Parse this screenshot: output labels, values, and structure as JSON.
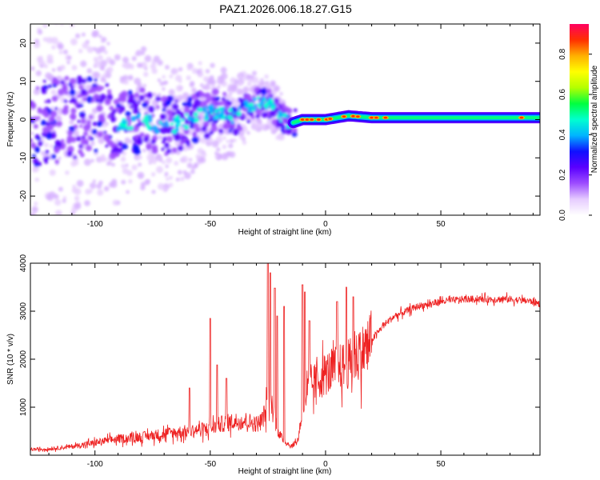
{
  "page": {
    "title": "PAZ1.2026.006.18.27.G15"
  },
  "chart_data": [
    {
      "type": "heatmap",
      "title": "PAZ1.2026.006.18.27.G15",
      "xlabel": "Height of straight line (km)",
      "ylabel": "Frequency (Hz)",
      "xlim": [
        -128,
        93
      ],
      "ylim": [
        -25,
        25
      ],
      "x_ticks": [
        -100,
        -50,
        0,
        50
      ],
      "y_ticks": [
        -20,
        -10,
        0,
        10,
        20
      ],
      "colorbar": {
        "label": "Normalized spectral amplitude",
        "range": [
          0,
          0.95
        ],
        "ticks": [
          0,
          0.2,
          0.4,
          0.6,
          0.8
        ],
        "tick_labels": [
          "0.0",
          "0.2",
          "0.4",
          "0.6",
          "0.8"
        ],
        "colors": [
          "#ffffff",
          "#e6ccff",
          "#9d4dff",
          "#5a00ff",
          "#1010ff",
          "#00b4ff",
          "#00ffd0",
          "#00ff40",
          "#b4ff00",
          "#ffff00",
          "#ffb000",
          "#ff3000",
          "#ff0060"
        ]
      },
      "ridge": {
        "x": [
          -115,
          -100,
          -90,
          -80,
          -70,
          -62,
          -55,
          -48,
          -40,
          -34,
          -28,
          -24,
          -20,
          -15,
          -10,
          -5,
          0,
          5,
          10,
          20,
          30,
          50,
          70,
          93
        ],
        "y": [
          0,
          1,
          -1,
          0,
          -2,
          -1,
          1,
          2,
          1,
          3,
          5,
          4,
          1,
          -1,
          0,
          0,
          0,
          0.5,
          1,
          0.5,
          0.5,
          0.5,
          0.5,
          0.5
        ]
      }
    },
    {
      "type": "line",
      "title": "",
      "xlabel": "Height of straight line (km)",
      "ylabel": "SNR (10 * v/v)",
      "xlim": [
        -128,
        93
      ],
      "ylim": [
        0,
        4000
      ],
      "x_ticks": [
        -100,
        -50,
        0,
        50
      ],
      "y_ticks": [
        1000,
        2000,
        3000,
        4000
      ],
      "series": [
        {
          "name": "SNR",
          "color": "#ee2222",
          "x": [
            -128,
            -120,
            -110,
            -100,
            -90,
            -80,
            -70,
            -60,
            -50,
            -45,
            -40,
            -35,
            -30,
            -28,
            -26,
            -24,
            -22,
            -20,
            -15,
            -12,
            -10,
            -8,
            -5,
            0,
            5,
            10,
            15,
            20,
            25,
            30,
            35,
            40,
            45,
            50,
            60,
            70,
            80,
            90,
            93
          ],
          "values": [
            120,
            130,
            180,
            260,
            340,
            380,
            450,
            500,
            560,
            650,
            700,
            720,
            650,
            700,
            900,
            1200,
            750,
            400,
            180,
            300,
            950,
            1300,
            1500,
            1700,
            1800,
            1900,
            2100,
            2400,
            2700,
            2900,
            3000,
            3100,
            3150,
            3200,
            3250,
            3250,
            3250,
            3200,
            3150
          ]
        }
      ],
      "spikes": [
        {
          "x": -59,
          "value": 1400
        },
        {
          "x": -50,
          "value": 2850
        },
        {
          "x": -47,
          "value": 1880
        },
        {
          "x": -43,
          "value": 1600
        },
        {
          "x": -25,
          "value": 4000
        },
        {
          "x": -24,
          "value": 3800
        },
        {
          "x": -22,
          "value": 3480
        },
        {
          "x": -21,
          "value": 2900
        },
        {
          "x": -18,
          "value": 3100
        },
        {
          "x": -10,
          "value": 3550
        },
        {
          "x": -9,
          "value": 3400
        },
        {
          "x": -7,
          "value": 2800
        },
        {
          "x": 5,
          "value": 3200
        },
        {
          "x": 9,
          "value": 3500
        },
        {
          "x": 12,
          "value": 3300
        }
      ]
    }
  ]
}
